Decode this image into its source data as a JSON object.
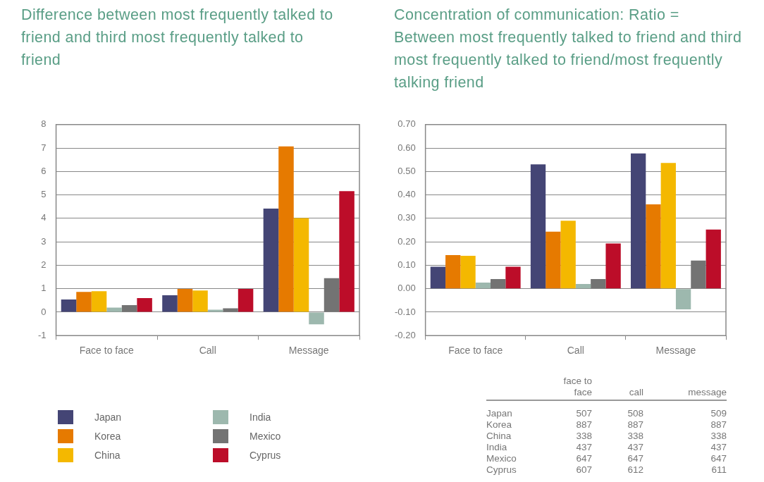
{
  "chart_data": [
    {
      "type": "bar",
      "title": "Difference between most frequently talked to friend and third most frequently talked to friend",
      "categories": [
        "Face to face",
        "Call",
        "Message"
      ],
      "ylim": [
        -1,
        8
      ],
      "yticks": [
        -1,
        0,
        1,
        2,
        3,
        4,
        5,
        6,
        7,
        8
      ],
      "grid": "y",
      "legend": "bottom",
      "series": [
        {
          "name": "Japan",
          "color": "#444575",
          "values": [
            0.54,
            0.72,
            4.42
          ]
        },
        {
          "name": "Korea",
          "color": "#e67a00",
          "values": [
            0.86,
            0.99,
            7.07
          ]
        },
        {
          "name": "China",
          "color": "#f4b800",
          "values": [
            0.89,
            0.92,
            4.01
          ]
        },
        {
          "name": "India",
          "color": "#9db8ae",
          "values": [
            0.19,
            0.1,
            -0.52
          ]
        },
        {
          "name": "Mexico",
          "color": "#737373",
          "values": [
            0.3,
            0.16,
            1.45
          ]
        },
        {
          "name": "Cyprus",
          "color": "#bc0d29",
          "values": [
            0.6,
            0.99,
            5.16
          ]
        }
      ]
    },
    {
      "type": "bar",
      "title": "Concentration of communication: Ratio = Between most frequently talked to friend and third most frequently talked to friend/most frequently talking friend",
      "categories": [
        "Face to face",
        "Call",
        "Message"
      ],
      "ylim": [
        -0.2,
        0.7
      ],
      "yticks": [
        {
          "value": -0.2,
          "label": "-0.20"
        },
        {
          "value": -0.1,
          "label": "-0.10"
        },
        {
          "value": 0,
          "label": "0.00"
        },
        {
          "value": 0.1,
          "label": "0.10"
        },
        {
          "value": 0.2,
          "label": "0.20"
        },
        {
          "value": 0.3,
          "label": "0.30"
        },
        {
          "value": 0.4,
          "label": "0.40"
        },
        {
          "value": 0.5,
          "label": "0.50"
        },
        {
          "value": 0.6,
          "label": "0.60"
        },
        {
          "value": 0.7,
          "label": "0.70"
        }
      ],
      "grid": "y",
      "series": [
        {
          "color": "#444575",
          "values": [
            0.094,
            0.53,
            0.577
          ]
        },
        {
          "color": "#e67a00",
          "values": [
            0.143,
            0.243,
            0.36
          ]
        },
        {
          "color": "#f4b800",
          "values": [
            0.14,
            0.29,
            0.536
          ]
        },
        {
          "color": "#9db8ae",
          "values": [
            0.026,
            0.02,
            -0.088
          ]
        },
        {
          "color": "#737373",
          "values": [
            0.041,
            0.041,
            0.12
          ]
        },
        {
          "color": "#bc0d29",
          "values": [
            0.094,
            0.193,
            0.252
          ]
        }
      ]
    },
    {
      "type": "heatmap",
      "data_labels": true,
      "categories": [
        "face to face",
        "call",
        "message"
      ],
      "y_categories": [
        "Japan",
        "Korea",
        "China",
        "India",
        "Mexico",
        "Cyprus"
      ],
      "cells": [
        [
          507,
          508,
          509
        ],
        [
          887,
          887,
          887
        ],
        [
          338,
          338,
          338
        ],
        [
          437,
          437,
          437
        ],
        [
          647,
          647,
          647
        ],
        [
          607,
          612,
          611
        ]
      ]
    }
  ]
}
